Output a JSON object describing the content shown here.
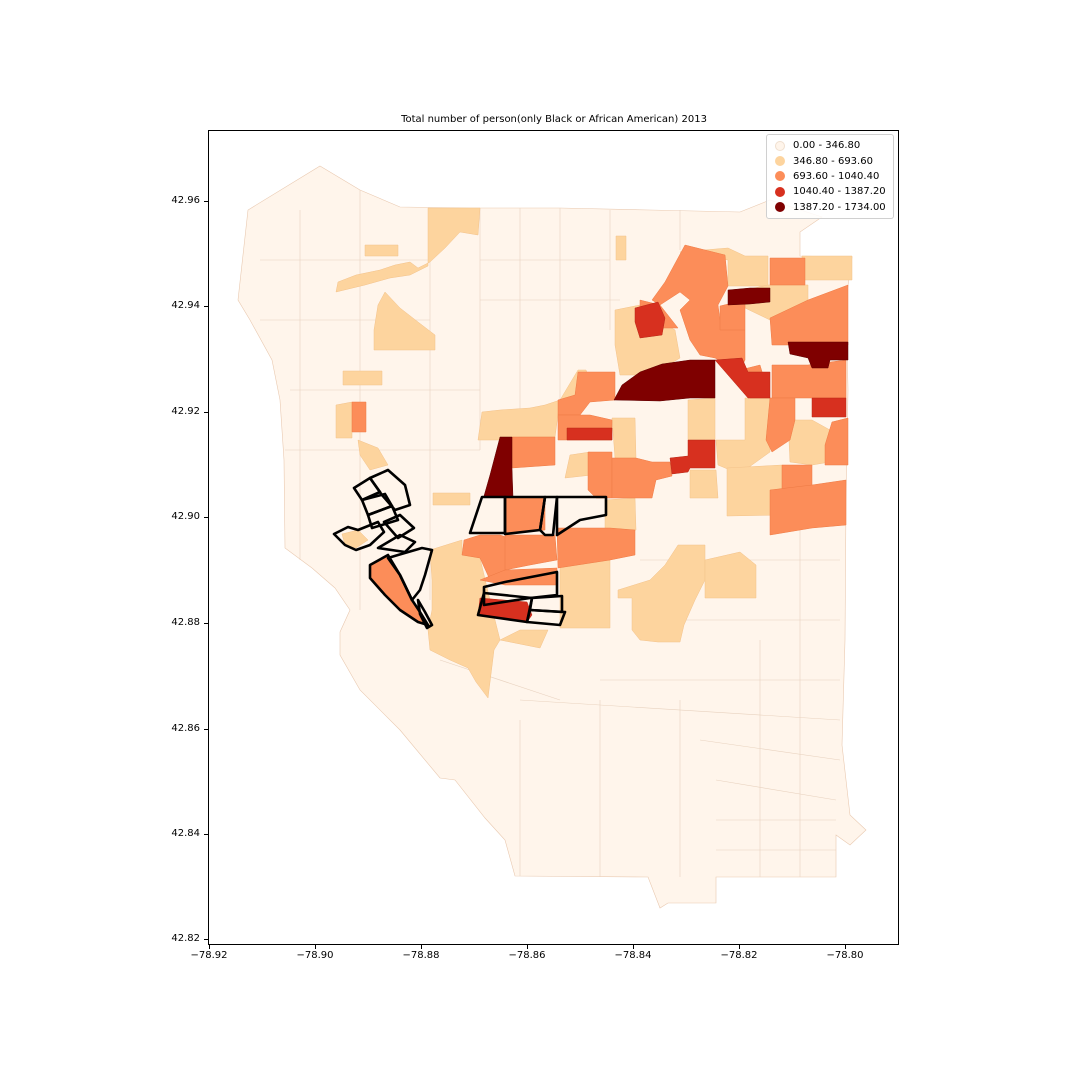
{
  "title": "Total number of person(only Black or African American) 2013",
  "legend": [
    {
      "label": "0.00 - 346.80",
      "color": "#fff5eb"
    },
    {
      "label": "346.80 - 693.60",
      "color": "#fdd49e"
    },
    {
      "label": "693.60 - 1040.40",
      "color": "#fc8d59"
    },
    {
      "label": "1040.40 - 1387.20",
      "color": "#d7301f"
    },
    {
      "label": "1387.20 - 1734.00",
      "color": "#7f0000"
    }
  ],
  "x_ticks": [
    "−78.92",
    "−78.90",
    "−78.88",
    "−78.86",
    "−78.84",
    "−78.82",
    "−78.80"
  ],
  "y_ticks": [
    "42.96",
    "42.94",
    "42.92",
    "42.90",
    "42.88",
    "42.86",
    "42.84",
    "42.82"
  ],
  "map": {
    "x_range": [
      -78.92,
      -78.8
    ],
    "y_range": [
      42.82,
      42.96
    ],
    "classes": 5,
    "highlighted_outline_color": "#000000"
  }
}
